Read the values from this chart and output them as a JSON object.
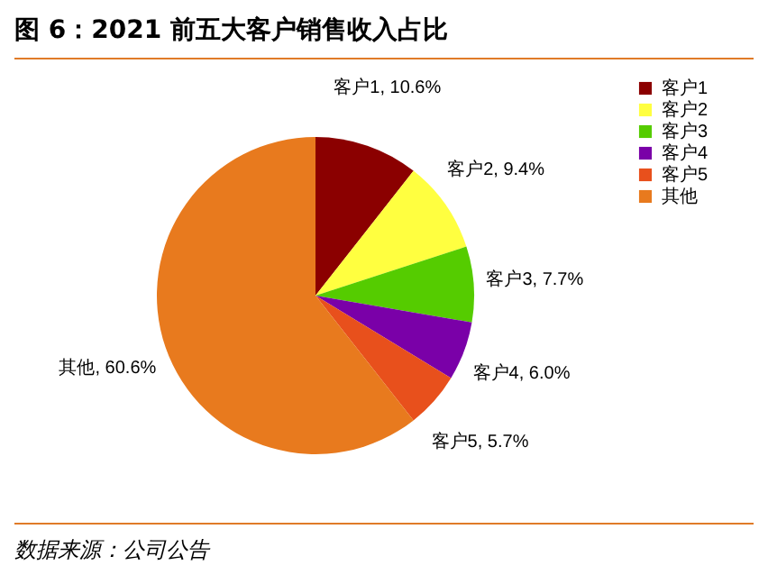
{
  "chart_data": {
    "type": "pie",
    "title": "图 6：2021 前五大客户销售收入占比",
    "categories": [
      "客户1",
      "客户2",
      "客户3",
      "客户4",
      "客户5",
      "其他"
    ],
    "values": [
      10.6,
      9.4,
      7.7,
      6.0,
      5.7,
      60.6
    ],
    "colors": [
      "#8b0000",
      "#ffff40",
      "#55cc00",
      "#7a00a8",
      "#e8501c",
      "#e87a1e"
    ],
    "value_labels": [
      "客户1, 10.6%",
      "客户2, 9.4%",
      "客户3, 7.7%",
      "客户4, 6.0%",
      "客户5, 5.7%",
      "其他, 60.6%"
    ],
    "legend": "right",
    "annotations": [
      "数据来源：公司公告"
    ]
  }
}
